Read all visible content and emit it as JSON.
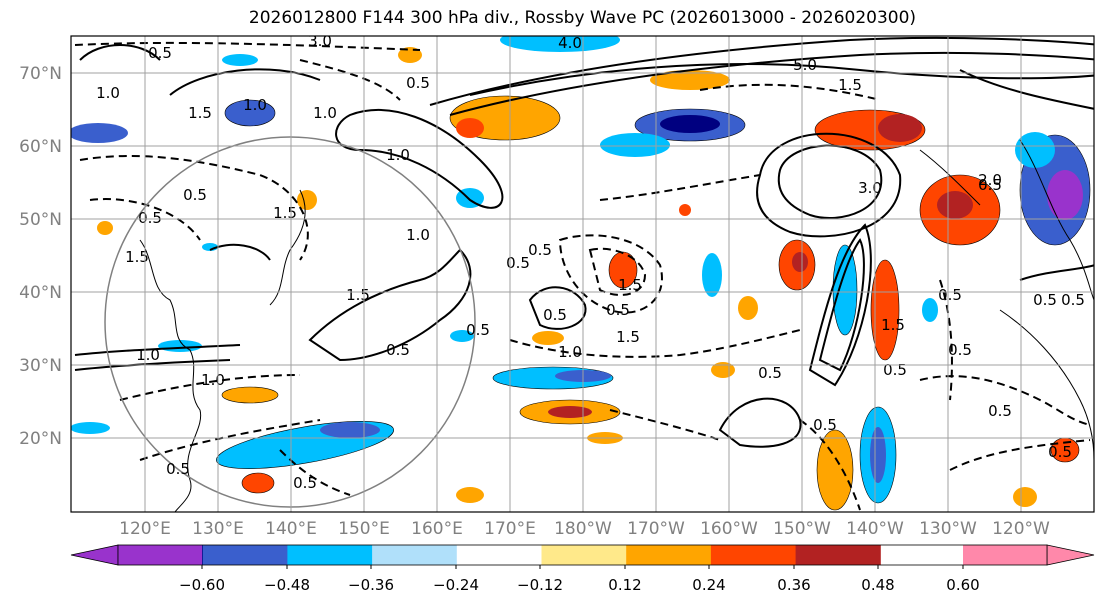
{
  "title": "2026012800 F144 300 hPa div., Rossby Wave PC (2026013000 - 2026020300)",
  "lat_labels": [
    "70°N",
    "60°N",
    "50°N",
    "40°N",
    "30°N",
    "20°N"
  ],
  "lon_labels": [
    "120°E",
    "130°E",
    "140°E",
    "150°E",
    "160°E",
    "170°E",
    "180°W",
    "170°W",
    "160°W",
    "150°W",
    "140°W",
    "130°W",
    "120°W"
  ],
  "colorbar": {
    "ticks": [
      "−0.60",
      "−0.48",
      "−0.36",
      "−0.24",
      "−0.12",
      "0.12",
      "0.24",
      "0.36",
      "0.48",
      "0.60"
    ],
    "colors": [
      "#9933cc",
      "#000080",
      "#3a5fcd",
      "#00bfff",
      "#b0e0fa",
      "#ffffff",
      "#ffe98a",
      "#ffa500",
      "#ff4500",
      "#b22222",
      "#ff88aa"
    ]
  },
  "contour_labels": [
    "1.0",
    "1.5",
    "0.5",
    "3.0",
    "2.0",
    "5.0",
    "4.0",
    "0.5",
    "1.5",
    "1.0",
    "0.5",
    "1.5",
    "1.0",
    "0.5",
    "0.5",
    "1.5",
    "0.5",
    "1.0",
    "0.5",
    "0.5",
    "1.5",
    "1.0",
    "1.5",
    "0.5",
    "1.5",
    "3.0",
    "0.5",
    "0.5",
    "1.0",
    "0.5",
    "1.5",
    "0.5",
    "0.5",
    "0.5",
    "0.5",
    "0.5",
    "0.5",
    "1.0",
    "0.5",
    "0.5",
    "1.0",
    "0.5",
    "0.5"
  ]
}
